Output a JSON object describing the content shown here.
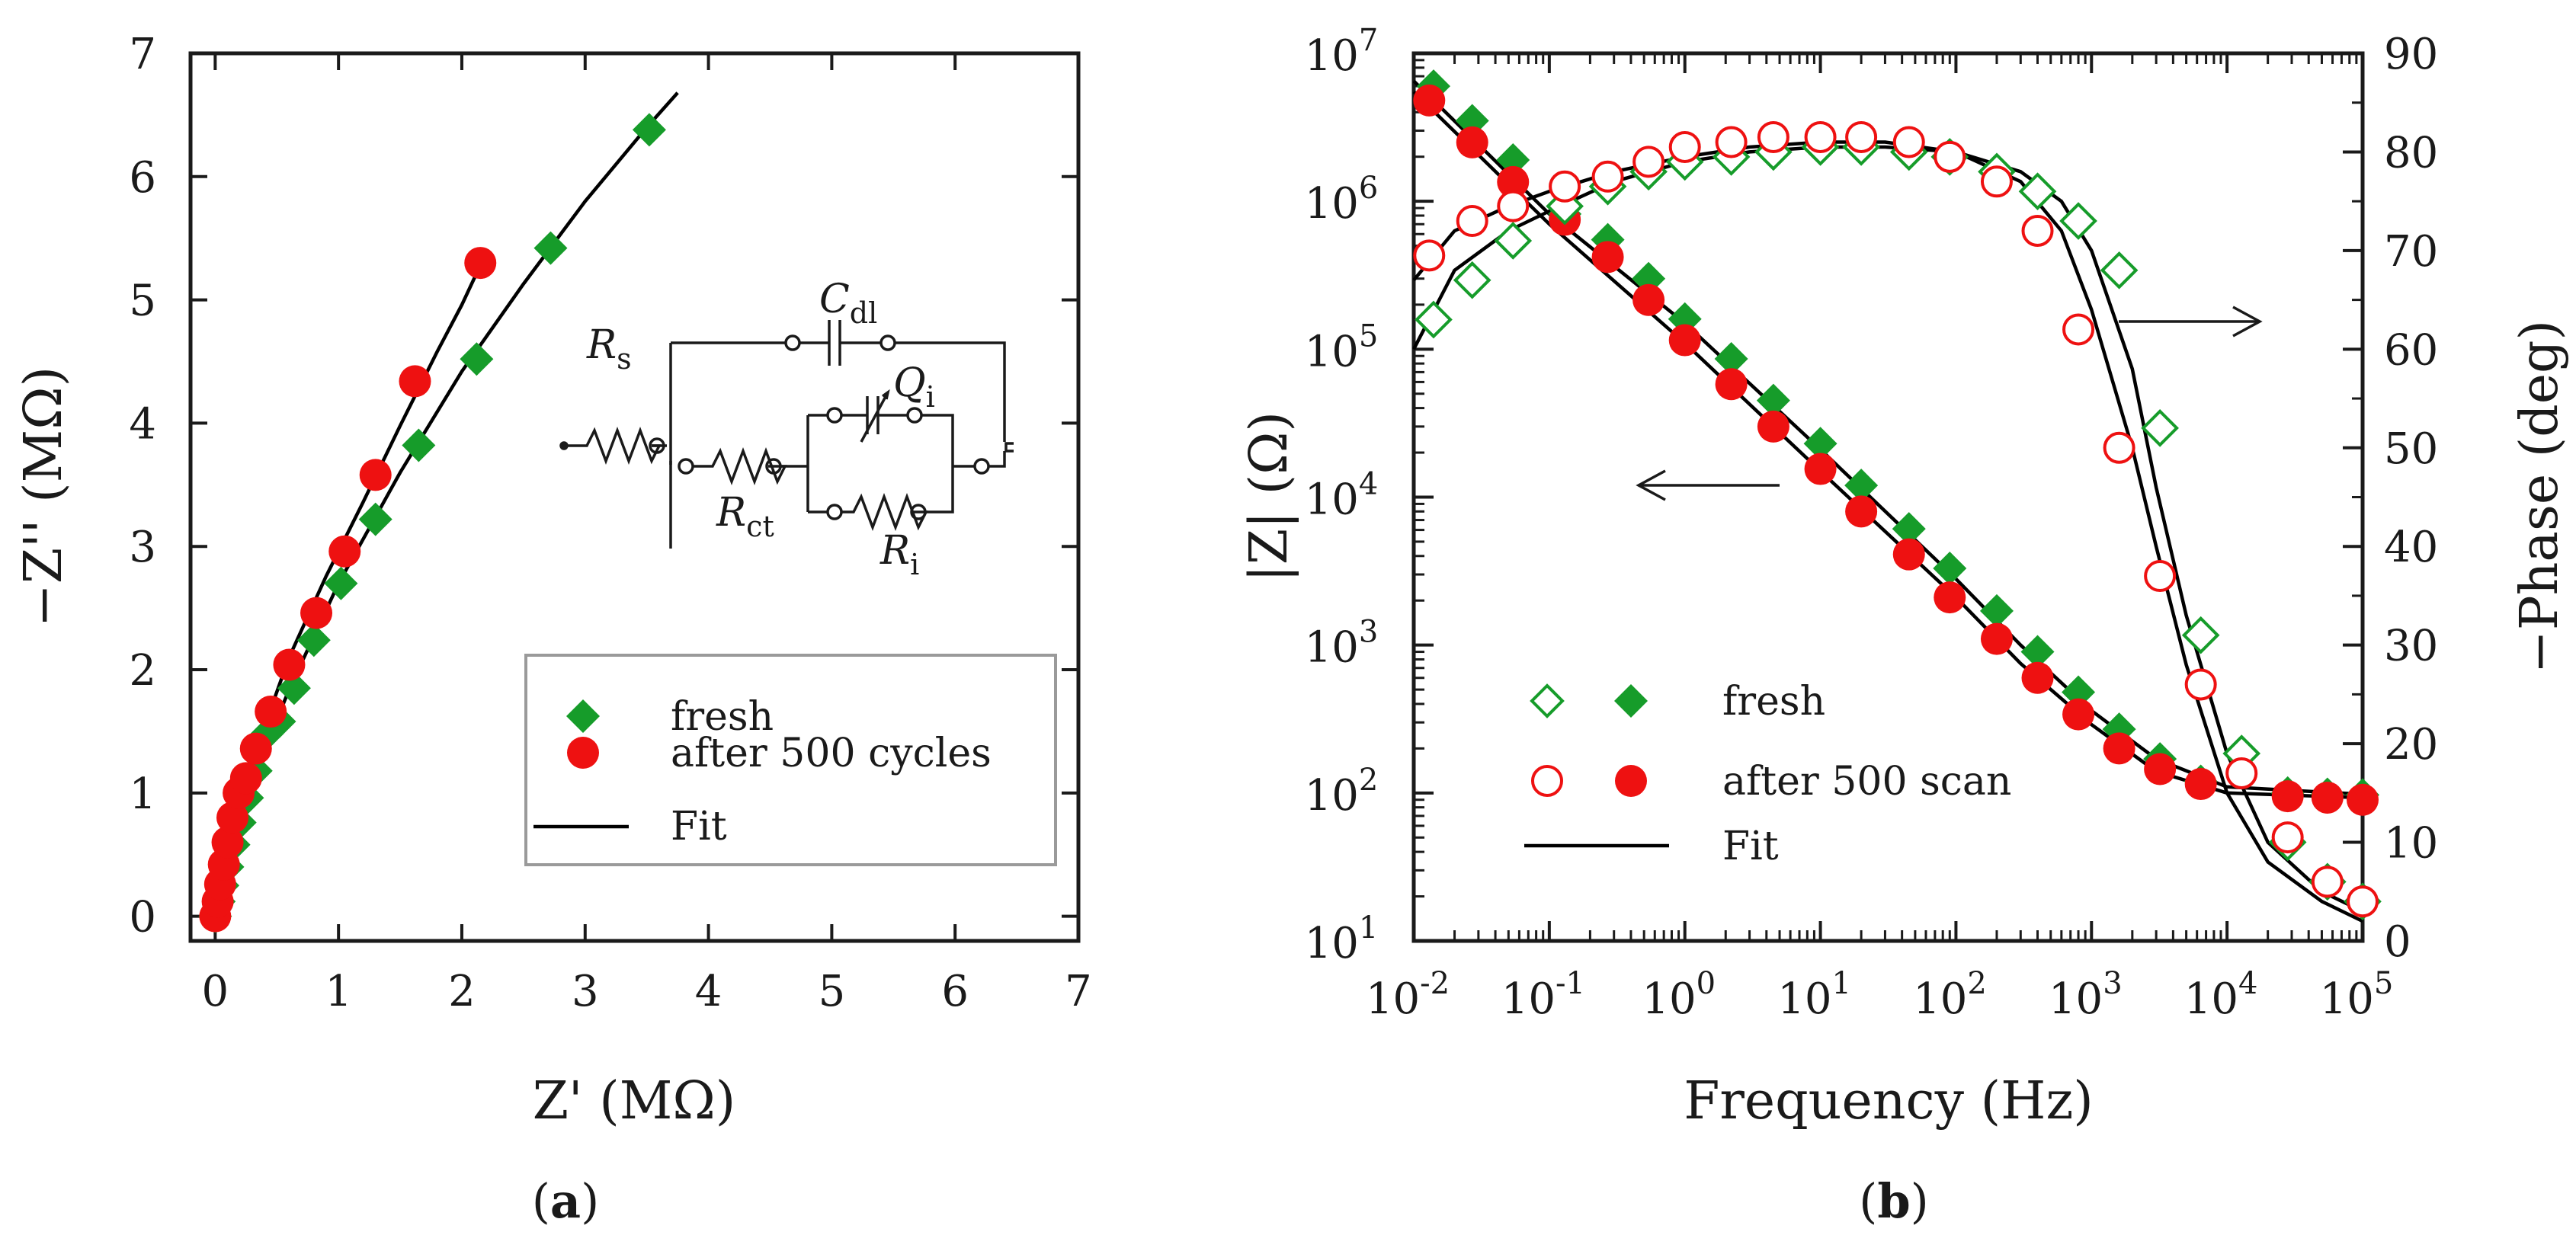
{
  "colors": {
    "fresh": "#169c2a",
    "cycled": "#ee1111",
    "fit": "#000000",
    "axis": "#1a1a1a",
    "legendBorder": "#9a9a9a"
  },
  "panel_a": {
    "caption": "a",
    "circuit_labels": [
      "R",
      "s",
      "C",
      "dl",
      "Q",
      "i",
      "R",
      "ct",
      "R",
      "i"
    ]
  },
  "panel_b": {
    "caption": "b"
  },
  "chart_data": [
    {
      "type": "scatter",
      "panel": "a",
      "xlabel": "Z' (MΩ)",
      "ylabel": "−Z'' (MΩ)",
      "xlim": [
        -0.2,
        7
      ],
      "ylim": [
        -0.2,
        7
      ],
      "xticks": [
        0,
        1,
        2,
        3,
        4,
        5,
        6,
        7
      ],
      "yticks": [
        0,
        1,
        2,
        3,
        4,
        5,
        6,
        7
      ],
      "legend": [
        "fresh",
        "after 500 cycles",
        "Fit"
      ],
      "series": [
        {
          "name": "fresh",
          "marker": "diamond-filled",
          "x": [
            0.0,
            0.03,
            0.06,
            0.1,
            0.15,
            0.2,
            0.26,
            0.33,
            0.42,
            0.52,
            0.64,
            0.8,
            1.02,
            1.3,
            1.65,
            2.12,
            2.72,
            3.52
          ],
          "y": [
            0.0,
            0.12,
            0.25,
            0.4,
            0.58,
            0.76,
            0.96,
            1.18,
            1.48,
            1.58,
            1.85,
            2.24,
            2.7,
            3.22,
            3.82,
            4.52,
            5.42,
            6.38
          ]
        },
        {
          "name": "after 500 cycles",
          "marker": "circle-filled",
          "x": [
            0.0,
            0.02,
            0.04,
            0.07,
            0.1,
            0.14,
            0.19,
            0.25,
            0.33,
            0.45,
            0.6,
            0.82,
            1.05,
            1.3,
            1.62,
            2.15
          ],
          "y": [
            0.0,
            0.12,
            0.26,
            0.42,
            0.6,
            0.8,
            1.0,
            1.12,
            1.36,
            1.66,
            2.04,
            2.46,
            2.96,
            3.58,
            4.34,
            5.3
          ]
        },
        {
          "name": "Fit fresh",
          "style": "line",
          "x": [
            0,
            0.1,
            0.3,
            0.6,
            1.0,
            1.5,
            2.0,
            2.5,
            3.0,
            3.5,
            3.75
          ],
          "y": [
            0,
            0.44,
            1.1,
            1.84,
            2.7,
            3.6,
            4.42,
            5.13,
            5.8,
            6.4,
            6.68
          ]
        },
        {
          "name": "Fit after 500 cycles",
          "style": "line",
          "x": [
            0,
            0.1,
            0.3,
            0.6,
            0.9,
            1.2,
            1.5,
            1.8,
            2.0,
            2.15
          ],
          "y": [
            0,
            0.55,
            1.26,
            2.1,
            2.76,
            3.36,
            3.98,
            4.58,
            4.96,
            5.28
          ]
        }
      ]
    },
    {
      "type": "scatter",
      "panel": "b",
      "xscale": "log",
      "xlabel": "Frequency (Hz)",
      "ylabel": "|Z| (Ω)",
      "y2label": "−Phase (deg)",
      "xlim": [
        0.01,
        100000
      ],
      "ylim": [
        10,
        10000000
      ],
      "y2lim": [
        0,
        90
      ],
      "xtick_exponents": [
        "-2",
        "-1",
        "0",
        "1",
        "2",
        "3",
        "4",
        "5"
      ],
      "ytick_exponents": [
        "1",
        "2",
        "3",
        "4",
        "5",
        "6",
        "7"
      ],
      "y2ticks": [
        0,
        10,
        20,
        30,
        40,
        50,
        60,
        70,
        80,
        90
      ],
      "legend": [
        "fresh",
        "after 500 scan",
        "Fit"
      ],
      "series": [
        {
          "name": "fresh |Z|",
          "marker": "diamond-filled",
          "axis": "left",
          "x": [
            0.014,
            0.027,
            0.054,
            0.13,
            0.27,
            0.54,
            1,
            2.2,
            4.5,
            10,
            20,
            45,
            90,
            200,
            400,
            800,
            1600,
            3200,
            6400,
            28000,
            55000,
            100000
          ],
          "y": [
            6000000,
            3500000,
            1900000,
            820000,
            550000,
            300000,
            160000,
            86000,
            45000,
            23000,
            12000,
            6100,
            3300,
            1700,
            900,
            480,
            270,
            170,
            120,
            100,
            98,
            97
          ]
        },
        {
          "name": "after 500 scan |Z|",
          "marker": "circle-filled",
          "axis": "left",
          "x": [
            0.013,
            0.027,
            0.054,
            0.13,
            0.27,
            0.54,
            1,
            2.2,
            4.5,
            10,
            20,
            45,
            90,
            200,
            400,
            800,
            1600,
            3200,
            6400,
            28000,
            55000,
            100000
          ],
          "y": [
            4800000,
            2500000,
            1350000,
            750000,
            420000,
            215000,
            115000,
            58000,
            30000,
            15500,
            8000,
            4100,
            2100,
            1100,
            600,
            340,
            200,
            145,
            115,
            95,
            93,
            90
          ]
        },
        {
          "name": "fresh phase",
          "marker": "diamond-open",
          "axis": "right",
          "x": [
            0.014,
            0.027,
            0.054,
            0.13,
            0.27,
            0.54,
            1,
            2.2,
            4.5,
            10,
            20,
            45,
            90,
            200,
            400,
            800,
            1600,
            3200,
            6400,
            12800,
            28000,
            55000,
            100000
          ],
          "y": [
            63,
            67,
            71,
            74.5,
            76.5,
            78,
            79,
            79.5,
            80,
            80.5,
            80.5,
            80,
            79.5,
            78,
            76,
            73,
            68,
            52,
            31,
            19,
            10,
            6,
            4
          ]
        },
        {
          "name": "after 500 scan phase",
          "marker": "circle-open",
          "axis": "right",
          "x": [
            0.013,
            0.027,
            0.054,
            0.13,
            0.27,
            0.54,
            1,
            2.2,
            4.5,
            10,
            20,
            45,
            90,
            200,
            400,
            800,
            1600,
            3200,
            6400,
            12800,
            28000,
            55000,
            100000
          ],
          "y": [
            69.5,
            73,
            74.5,
            76.5,
            77.5,
            79,
            80.5,
            81,
            81.5,
            81.5,
            81.5,
            81,
            79.5,
            77,
            72,
            62,
            50,
            37,
            26,
            17,
            10.5,
            6,
            4
          ]
        },
        {
          "name": "Fit |Z| fresh",
          "style": "line",
          "axis": "left",
          "x": [
            0.01,
            0.1,
            1,
            10,
            100,
            300,
            1000,
            3000,
            10000,
            100000
          ],
          "y": [
            6500000,
            820000,
            150000,
            21000,
            2800,
            1000,
            360,
            170,
            110,
            98
          ]
        },
        {
          "name": "Fit |Z| after 500 scan",
          "style": "line",
          "axis": "left",
          "x": [
            0.01,
            0.1,
            1,
            10,
            100,
            300,
            1000,
            3000,
            10000,
            100000
          ],
          "y": [
            5500000,
            700000,
            110000,
            15000,
            2100,
            750,
            290,
            140,
            100,
            93
          ]
        },
        {
          "name": "Fit phase fresh",
          "style": "line",
          "axis": "right",
          "x": [
            0.01,
            0.02,
            0.05,
            0.1,
            0.3,
            1,
            3,
            10,
            30,
            100,
            300,
            600,
            1000,
            2000,
            3000,
            5000,
            10000,
            20000,
            50000,
            100000
          ],
          "y": [
            60,
            68,
            72,
            74,
            77,
            79,
            80,
            80.5,
            80.5,
            80,
            78,
            75,
            70,
            58,
            46,
            33,
            19,
            10,
            5,
            3
          ]
        },
        {
          "name": "Fit phase after 500 scan",
          "style": "line",
          "axis": "right",
          "x": [
            0.01,
            0.02,
            0.05,
            0.1,
            0.3,
            1,
            3,
            10,
            30,
            100,
            300,
            600,
            1000,
            2000,
            3000,
            5000,
            10000,
            20000,
            50000,
            100000
          ],
          "y": [
            67,
            72,
            74.5,
            76,
            78,
            79.5,
            80.5,
            81,
            81,
            80,
            77,
            72,
            64,
            50,
            40,
            28,
            15,
            8,
            4,
            2
          ]
        }
      ]
    }
  ]
}
